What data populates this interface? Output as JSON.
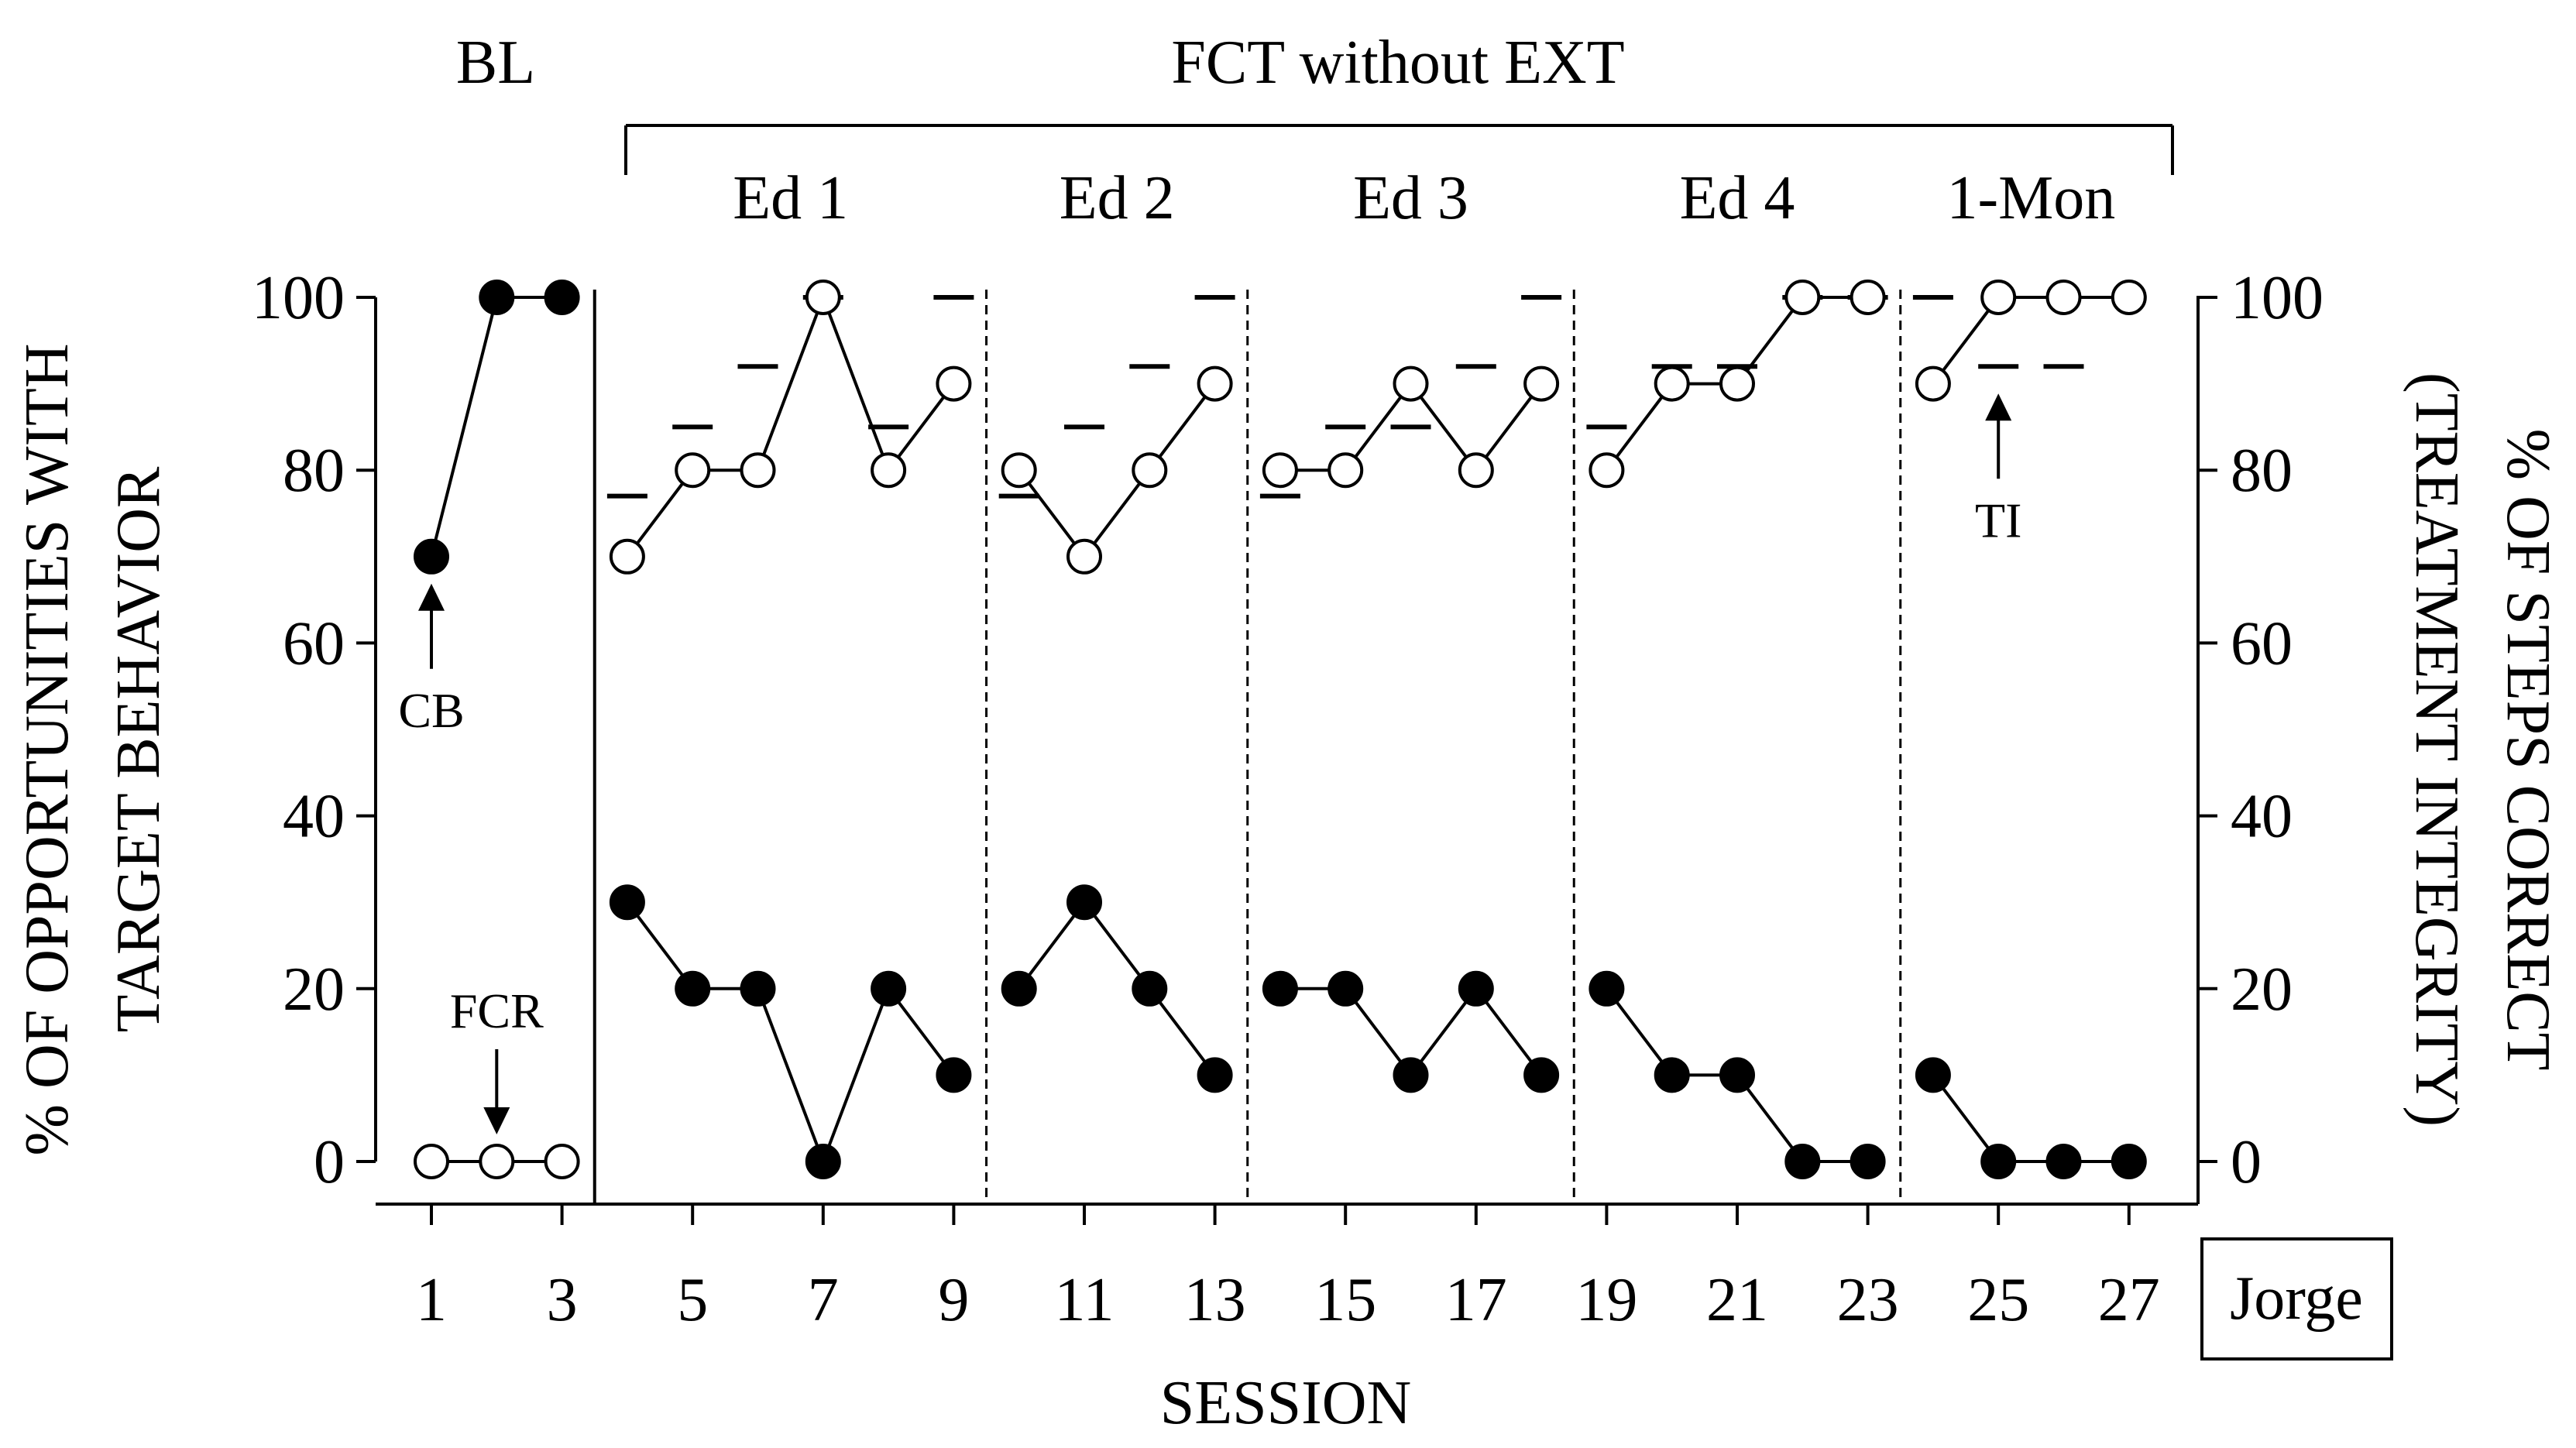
{
  "chart_data": {
    "type": "line",
    "participant": "Jorge",
    "xlabel": "SESSION",
    "ylabel_left": [
      "% OF OPPORTUNITIES WITH",
      "TARGET BEHAVIOR"
    ],
    "ylabel_right": [
      "% OF STEPS CORRECT",
      "(TREATMENT INTEGRITY)"
    ],
    "xlim": [
      0,
      28
    ],
    "ylim": [
      0,
      100
    ],
    "x_ticks": [
      1,
      3,
      5,
      7,
      9,
      11,
      13,
      15,
      17,
      19,
      21,
      23,
      25,
      27
    ],
    "y_ticks": [
      0,
      20,
      40,
      60,
      80,
      100
    ],
    "top_labels": {
      "baseline": "BL",
      "treatment": "FCT without EXT"
    },
    "phases": [
      {
        "label": "Ed 1",
        "sessions": [
          4,
          9
        ]
      },
      {
        "label": "Ed 2",
        "sessions": [
          10,
          13
        ]
      },
      {
        "label": "Ed 3",
        "sessions": [
          14,
          18
        ]
      },
      {
        "label": "Ed 4",
        "sessions": [
          19,
          23
        ]
      },
      {
        "label": "1-Mon",
        "sessions": [
          24,
          27
        ]
      }
    ],
    "phase_changes": [
      {
        "after": 3.5,
        "style": "solid"
      },
      {
        "after": 9.5,
        "style": "dashed"
      },
      {
        "after": 13.5,
        "style": "dashed"
      },
      {
        "after": 18.5,
        "style": "dashed"
      },
      {
        "after": 23.5,
        "style": "dashed"
      }
    ],
    "series": [
      {
        "name": "CB",
        "marker": "filled-circle",
        "segments": [
          [
            [
              1,
              70
            ],
            [
              2,
              100
            ],
            [
              3,
              100
            ]
          ],
          [
            [
              4,
              30
            ],
            [
              5,
              20
            ],
            [
              6,
              20
            ],
            [
              7,
              0
            ],
            [
              8,
              20
            ],
            [
              9,
              10
            ]
          ],
          [
            [
              10,
              20
            ],
            [
              11,
              30
            ],
            [
              12,
              20
            ],
            [
              13,
              10
            ]
          ],
          [
            [
              14,
              20
            ],
            [
              15,
              20
            ],
            [
              16,
              10
            ],
            [
              17,
              20
            ],
            [
              18,
              10
            ]
          ],
          [
            [
              19,
              20
            ],
            [
              20,
              10
            ],
            [
              21,
              10
            ],
            [
              22,
              0
            ],
            [
              23,
              0
            ]
          ],
          [
            [
              24,
              10
            ],
            [
              25,
              0
            ],
            [
              26,
              0
            ],
            [
              27,
              0
            ]
          ]
        ]
      },
      {
        "name": "FCR",
        "marker": "open-circle",
        "segments": [
          [
            [
              1,
              0
            ],
            [
              2,
              0
            ],
            [
              3,
              0
            ]
          ],
          [
            [
              4,
              70
            ],
            [
              5,
              80
            ],
            [
              6,
              80
            ],
            [
              7,
              100
            ],
            [
              8,
              80
            ],
            [
              9,
              90
            ]
          ],
          [
            [
              10,
              80
            ],
            [
              11,
              70
            ],
            [
              12,
              80
            ],
            [
              13,
              90
            ]
          ],
          [
            [
              14,
              80
            ],
            [
              15,
              80
            ],
            [
              16,
              90
            ],
            [
              17,
              80
            ],
            [
              18,
              90
            ]
          ],
          [
            [
              19,
              80
            ],
            [
              20,
              90
            ],
            [
              21,
              90
            ],
            [
              22,
              100
            ],
            [
              23,
              100
            ]
          ],
          [
            [
              24,
              90
            ],
            [
              25,
              100
            ],
            [
              26,
              100
            ],
            [
              27,
              100
            ]
          ]
        ]
      },
      {
        "name": "TI",
        "marker": "dash",
        "points": [
          [
            4,
            77
          ],
          [
            5,
            85
          ],
          [
            6,
            92
          ],
          [
            7,
            100
          ],
          [
            8,
            85
          ],
          [
            9,
            100
          ],
          [
            10,
            77
          ],
          [
            11,
            85
          ],
          [
            12,
            92
          ],
          [
            13,
            100
          ],
          [
            14,
            77
          ],
          [
            15,
            85
          ],
          [
            16,
            85
          ],
          [
            17,
            92
          ],
          [
            18,
            100
          ],
          [
            19,
            85
          ],
          [
            20,
            92
          ],
          [
            21,
            92
          ],
          [
            22,
            100
          ],
          [
            23,
            100
          ],
          [
            24,
            100
          ],
          [
            25,
            92
          ],
          [
            26,
            92
          ]
        ]
      }
    ],
    "annotations": [
      {
        "label": "CB",
        "arrow": "up",
        "at": [
          1,
          70
        ]
      },
      {
        "label": "FCR",
        "arrow": "down",
        "at": [
          2,
          0
        ]
      },
      {
        "label": "TI",
        "arrow": "up",
        "at": [
          25,
          92
        ]
      }
    ]
  }
}
